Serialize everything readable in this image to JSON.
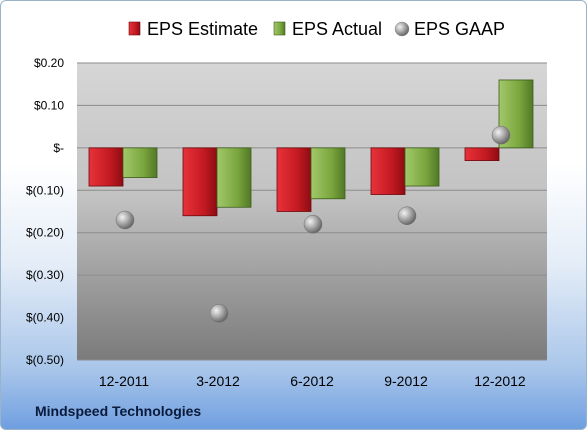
{
  "chart_data": {
    "type": "bar",
    "categories": [
      "12-2011",
      "3-2012",
      "6-2012",
      "9-2012",
      "12-2012"
    ],
    "series": [
      {
        "name": "EPS Estimate",
        "kind": "bar",
        "color": "#d8202a",
        "values": [
          -0.09,
          -0.16,
          -0.15,
          -0.11,
          -0.03
        ]
      },
      {
        "name": "EPS Actual",
        "kind": "bar",
        "color": "#86b34a",
        "values": [
          -0.07,
          -0.14,
          -0.12,
          -0.09,
          0.16
        ]
      },
      {
        "name": "EPS GAAP",
        "kind": "marker",
        "color": "#a0a0a0",
        "values": [
          -0.17,
          -0.39,
          -0.18,
          -0.16,
          0.03
        ]
      }
    ],
    "ylim": [
      -0.5,
      0.2
    ],
    "yticks": [
      0.2,
      0.1,
      0.0,
      -0.1,
      -0.2,
      -0.3,
      -0.4,
      -0.5
    ],
    "ytick_labels": [
      "$0.20",
      "$0.10",
      "$-",
      "$(0.10)",
      "$(0.20)",
      "$(0.30)",
      "$(0.40)",
      "$(0.50)"
    ],
    "grid": true,
    "legend": "top"
  },
  "footer": {
    "company": "Mindspeed Technologies"
  }
}
